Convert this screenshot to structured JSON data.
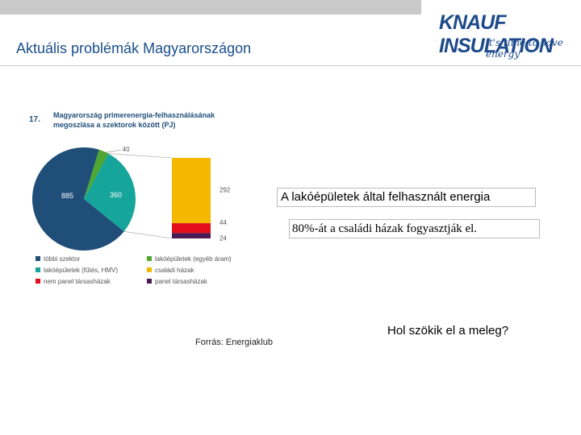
{
  "header": {
    "title": "Aktuális problémák Magyarországon",
    "logo_text": "KNAUF INSULATION",
    "logo_tagline": "it's time to save energy"
  },
  "colors": {
    "accent": "#1a4f8c",
    "tobbi": "#1f4e79",
    "lako_egyeb": "#4ea72e",
    "lako_futes": "#16a59a",
    "csaladi": "#f5b800",
    "nem_panel": "#e3101b",
    "panel": "#4b1a54"
  },
  "chart_data": {
    "type": "pie",
    "number": "17.",
    "title_line1": "Magyarország primerenergia-felhasználásának",
    "title_line2": "megoszlása a szektorok között (PJ)",
    "slices": [
      {
        "name": "többi szektor",
        "value": 885,
        "label": "885",
        "color": "#1f4e79"
      },
      {
        "name": "lakóépületek (egyéb áram)",
        "value": 40,
        "label": "40",
        "color": "#4ea72e"
      },
      {
        "name": "lakóépületek (fűtés, HMV)",
        "value": 360,
        "label": "360",
        "color": "#16a59a"
      }
    ],
    "breakdown": [
      {
        "name": "családi házak",
        "value": 292,
        "label": "292",
        "color": "#f5b800"
      },
      {
        "name": "nem panel társasházak",
        "value": 44,
        "label": "44",
        "color": "#e3101b"
      },
      {
        "name": "panel társasházak",
        "value": 24,
        "label": "24",
        "color": "#4b1a54"
      }
    ],
    "legend": [
      {
        "name": "többi szektor",
        "color": "#1f4e79"
      },
      {
        "name": "lakóépületek (egyéb áram)",
        "color": "#4ea72e"
      },
      {
        "name": "lakóépületek (fűtés, HMV)",
        "color": "#16a59a"
      },
      {
        "name": "családi házak",
        "color": "#f5b800"
      },
      {
        "name": "nem panel társasházak",
        "color": "#e3101b"
      },
      {
        "name": "panel társasházak",
        "color": "#4b1a54"
      }
    ]
  },
  "callouts": {
    "line1": "A lakóépületek által felhasznált energia",
    "line2": "80%-át a családi házak fogyasztják el."
  },
  "source": "Forrás: Energiaklub",
  "question": "Hol szökik el a meleg?"
}
